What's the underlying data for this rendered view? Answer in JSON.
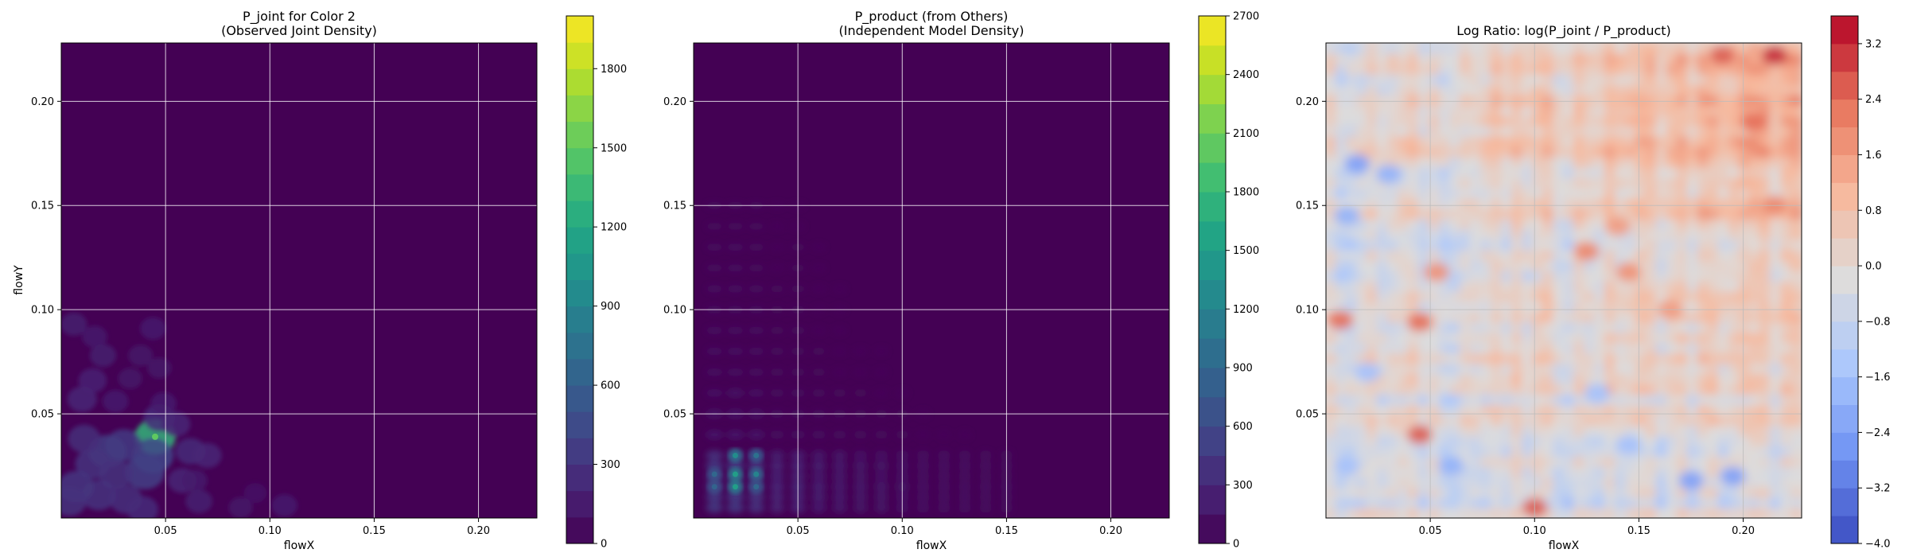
{
  "colors": {
    "viridis": [
      "#440154",
      "#482475",
      "#414487",
      "#355f8d",
      "#2a788e",
      "#21918c",
      "#22a884",
      "#44bf70",
      "#7ad151",
      "#bddf26",
      "#fde725"
    ],
    "coolwarm": [
      "#3b4cc0",
      "#6f92f3",
      "#aac7fd",
      "#dddcdc",
      "#f7b89c",
      "#e7745b",
      "#b40426"
    ],
    "grid": "#ffffff",
    "grid_on_red": "#bbbbbb"
  },
  "chart_data": [
    {
      "type": "heatmap",
      "title": "P_joint for Color 2\n(Observed Joint Density)",
      "xlabel": "flowX",
      "ylabel": "flowY",
      "colormap": "viridis",
      "xlim": [
        0.0,
        0.228
      ],
      "ylim": [
        0.0,
        0.228
      ],
      "xticks": [
        0.05,
        0.1,
        0.15,
        0.2
      ],
      "xtick_labels": [
        "0.05",
        "0.10",
        "0.15",
        "0.20"
      ],
      "yticks": [
        0.05,
        0.1,
        0.15,
        0.2
      ],
      "ytick_labels": [
        "0.05",
        "0.10",
        "0.15",
        "0.20"
      ],
      "grid": true,
      "colorbar": {
        "range": [
          0,
          2000
        ],
        "levels": 20,
        "ticks": [
          0,
          300,
          600,
          900,
          1200,
          1500,
          1800
        ],
        "tick_labels": [
          "0",
          "300",
          "600",
          "900",
          "1200",
          "1500",
          "1800"
        ]
      },
      "blobs": [
        {
          "x": 0.045,
          "y": 0.039,
          "value": 1300
        },
        {
          "x": 0.044,
          "y": 0.03,
          "value": 420
        },
        {
          "x": 0.04,
          "y": 0.022,
          "value": 380
        },
        {
          "x": 0.03,
          "y": 0.035,
          "value": 330
        },
        {
          "x": 0.022,
          "y": 0.032,
          "value": 350
        },
        {
          "x": 0.015,
          "y": 0.026,
          "value": 300
        },
        {
          "x": 0.026,
          "y": 0.021,
          "value": 280
        },
        {
          "x": 0.011,
          "y": 0.038,
          "value": 260
        },
        {
          "x": 0.007,
          "y": 0.015,
          "value": 320
        },
        {
          "x": 0.004,
          "y": 0.008,
          "value": 280
        },
        {
          "x": 0.018,
          "y": 0.011,
          "value": 300
        },
        {
          "x": 0.031,
          "y": 0.009,
          "value": 270
        },
        {
          "x": 0.039,
          "y": 0.004,
          "value": 240
        },
        {
          "x": 0.047,
          "y": 0.048,
          "value": 250
        },
        {
          "x": 0.055,
          "y": 0.045,
          "value": 200
        },
        {
          "x": 0.062,
          "y": 0.032,
          "value": 230
        },
        {
          "x": 0.07,
          "y": 0.03,
          "value": 200
        },
        {
          "x": 0.058,
          "y": 0.018,
          "value": 200
        },
        {
          "x": 0.066,
          "y": 0.008,
          "value": 170
        },
        {
          "x": 0.086,
          "y": 0.005,
          "value": 120
        },
        {
          "x": 0.107,
          "y": 0.006,
          "value": 150
        },
        {
          "x": 0.01,
          "y": 0.057,
          "value": 210
        },
        {
          "x": 0.015,
          "y": 0.066,
          "value": 190
        },
        {
          "x": 0.006,
          "y": 0.093,
          "value": 160
        },
        {
          "x": 0.02,
          "y": 0.078,
          "value": 160
        },
        {
          "x": 0.044,
          "y": 0.091,
          "value": 150
        },
        {
          "x": 0.038,
          "y": 0.078,
          "value": 130
        },
        {
          "x": 0.016,
          "y": 0.087,
          "value": 140
        },
        {
          "x": 0.047,
          "y": 0.072,
          "value": 120
        },
        {
          "x": 0.049,
          "y": 0.055,
          "value": 150
        },
        {
          "x": 0.026,
          "y": 0.056,
          "value": 150
        },
        {
          "x": 0.033,
          "y": 0.067,
          "value": 120
        },
        {
          "x": 0.064,
          "y": 0.018,
          "value": 140
        },
        {
          "x": 0.093,
          "y": 0.012,
          "value": 100
        }
      ]
    },
    {
      "type": "heatmap",
      "title": "P_product (from Others)\n(Independent Model Density)",
      "xlabel": "flowX",
      "ylabel": "",
      "colormap": "viridis",
      "xlim": [
        0.0,
        0.228
      ],
      "ylim": [
        0.0,
        0.228
      ],
      "xticks": [
        0.05,
        0.1,
        0.15,
        0.2
      ],
      "xtick_labels": [
        "0.05",
        "0.10",
        "0.15",
        "0.20"
      ],
      "yticks": [
        0.05,
        0.1,
        0.15,
        0.2
      ],
      "ytick_labels": [
        "0.05",
        "0.10",
        "0.15",
        "0.20"
      ],
      "grid": true,
      "colorbar": {
        "range": [
          0,
          2700
        ],
        "levels": 18,
        "ticks": [
          0,
          300,
          600,
          900,
          1200,
          1500,
          1800,
          2100,
          2400,
          2700
        ],
        "tick_labels": [
          "0",
          "300",
          "600",
          "900",
          "1200",
          "1500",
          "1800",
          "2100",
          "2400",
          "2700"
        ]
      },
      "marginal_x": [
        {
          "x": 0.01,
          "w": 0.95
        },
        {
          "x": 0.02,
          "w": 1.0
        },
        {
          "x": 0.03,
          "w": 0.85
        },
        {
          "x": 0.04,
          "w": 0.55
        },
        {
          "x": 0.05,
          "w": 0.6
        },
        {
          "x": 0.06,
          "w": 0.45
        },
        {
          "x": 0.07,
          "w": 0.4
        },
        {
          "x": 0.08,
          "w": 0.35
        },
        {
          "x": 0.09,
          "w": 0.32
        },
        {
          "x": 0.1,
          "w": 0.3
        },
        {
          "x": 0.11,
          "w": 0.25
        },
        {
          "x": 0.12,
          "w": 0.22
        },
        {
          "x": 0.13,
          "w": 0.2
        },
        {
          "x": 0.14,
          "w": 0.18
        },
        {
          "x": 0.15,
          "w": 0.18
        }
      ],
      "marginal_y": [
        {
          "y": 0.005,
          "w": 0.9
        },
        {
          "y": 0.01,
          "w": 0.95
        },
        {
          "y": 0.015,
          "w": 1.0
        },
        {
          "y": 0.02,
          "w": 0.85
        },
        {
          "y": 0.025,
          "w": 0.95
        },
        {
          "y": 0.03,
          "w": 0.8
        },
        {
          "y": 0.04,
          "w": 0.4
        },
        {
          "y": 0.05,
          "w": 0.35
        },
        {
          "y": 0.06,
          "w": 0.3
        },
        {
          "y": 0.07,
          "w": 0.25
        },
        {
          "y": 0.08,
          "w": 0.25
        },
        {
          "y": 0.09,
          "w": 0.22
        },
        {
          "y": 0.1,
          "w": 0.22
        },
        {
          "y": 0.11,
          "w": 0.2
        },
        {
          "y": 0.12,
          "w": 0.18
        },
        {
          "y": 0.13,
          "w": 0.18
        },
        {
          "y": 0.14,
          "w": 0.15
        },
        {
          "y": 0.15,
          "w": 0.15
        }
      ],
      "peaks": [
        {
          "x": 0.02,
          "y": 0.015,
          "value": 1500
        },
        {
          "x": 0.02,
          "y": 0.021,
          "value": 1500
        },
        {
          "x": 0.02,
          "y": 0.03,
          "value": 1300
        },
        {
          "x": 0.03,
          "y": 0.021,
          "value": 1200
        },
        {
          "x": 0.03,
          "y": 0.03,
          "value": 1000
        },
        {
          "x": 0.01,
          "y": 0.021,
          "value": 900
        },
        {
          "x": 0.01,
          "y": 0.015,
          "value": 850
        },
        {
          "x": 0.03,
          "y": 0.015,
          "value": 900
        }
      ]
    },
    {
      "type": "heatmap",
      "title": "Log Ratio: log(P_joint / P_product)",
      "xlabel": "flowX",
      "ylabel": "",
      "colormap": "coolwarm",
      "xlim": [
        0.0,
        0.228
      ],
      "ylim": [
        0.0,
        0.228
      ],
      "xticks": [
        0.05,
        0.1,
        0.15,
        0.2
      ],
      "xtick_labels": [
        "0.05",
        "0.10",
        "0.15",
        "0.20"
      ],
      "yticks": [
        0.05,
        0.1,
        0.15,
        0.2
      ],
      "ytick_labels": [
        "0.05",
        "0.10",
        "0.15",
        "0.20"
      ],
      "grid": true,
      "colorbar": {
        "range": [
          -4.0,
          3.6
        ],
        "levels": 19,
        "ticks": [
          -4.0,
          -3.2,
          -2.4,
          -1.6,
          -0.8,
          0.0,
          0.8,
          1.6,
          2.4,
          3.2
        ],
        "tick_labels": [
          "−4.0",
          "−3.2",
          "−2.4",
          "−1.6",
          "−0.8",
          "0.0",
          "0.8",
          "1.6",
          "2.4",
          "3.2"
        ]
      },
      "warm_regions": [
        {
          "x": 0.007,
          "y": 0.095,
          "value": 2.4
        },
        {
          "x": 0.045,
          "y": 0.094,
          "value": 2.4
        },
        {
          "x": 0.045,
          "y": 0.04,
          "value": 2.6
        },
        {
          "x": 0.053,
          "y": 0.118,
          "value": 1.8
        },
        {
          "x": 0.145,
          "y": 0.118,
          "value": 1.8
        },
        {
          "x": 0.19,
          "y": 0.222,
          "value": 2.6
        },
        {
          "x": 0.215,
          "y": 0.222,
          "value": 3.2
        },
        {
          "x": 0.205,
          "y": 0.19,
          "value": 2.4
        },
        {
          "x": 0.215,
          "y": 0.15,
          "value": 2.0
        },
        {
          "x": 0.1,
          "y": 0.005,
          "value": 2.6
        },
        {
          "x": 0.14,
          "y": 0.14,
          "value": 1.6
        },
        {
          "x": 0.125,
          "y": 0.128,
          "value": 2.0
        },
        {
          "x": 0.165,
          "y": 0.1,
          "value": 1.6
        }
      ],
      "cool_regions": [
        {
          "x": 0.015,
          "y": 0.17,
          "value": -2.4
        },
        {
          "x": 0.03,
          "y": 0.165,
          "value": -2.0
        },
        {
          "x": 0.01,
          "y": 0.145,
          "value": -2.0
        },
        {
          "x": 0.02,
          "y": 0.07,
          "value": -1.6
        },
        {
          "x": 0.06,
          "y": 0.025,
          "value": -2.0
        },
        {
          "x": 0.175,
          "y": 0.018,
          "value": -2.4
        },
        {
          "x": 0.195,
          "y": 0.02,
          "value": -2.4
        },
        {
          "x": 0.13,
          "y": 0.06,
          "value": -1.6
        },
        {
          "x": 0.01,
          "y": 0.025,
          "value": -1.6
        },
        {
          "x": 0.145,
          "y": 0.035,
          "value": -1.6
        }
      ]
    }
  ]
}
